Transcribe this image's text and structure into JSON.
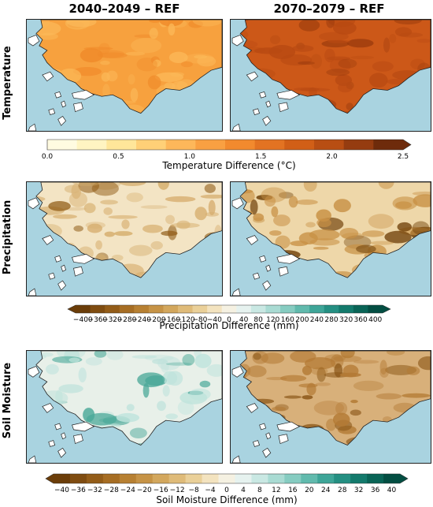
{
  "columns": [
    "2040–2049 – REF",
    "2070–2079 – REF"
  ],
  "rows": [
    {
      "label": "Temperature",
      "colorbar": {
        "title": "Temperature Difference (°C)",
        "ticks": [
          "0.0",
          "0.5",
          "1.0",
          "1.5",
          "2.0",
          "2.5"
        ],
        "colors": [
          "#fffbe1",
          "#fff4c2",
          "#ffe69a",
          "#ffd077",
          "#fdb75a",
          "#f9a042",
          "#f28a2e",
          "#e37322",
          "#d15f17",
          "#b84e13",
          "#953c10",
          "#6e2b0b"
        ]
      }
    },
    {
      "label": "Precipitation",
      "colorbar": {
        "title": "Precipitation Difference (mm)",
        "ticks": [
          "−400",
          "−360",
          "−320",
          "−280",
          "−240",
          "−200",
          "−160",
          "−120",
          "−80",
          "−40",
          "0",
          "40",
          "80",
          "120",
          "160",
          "200",
          "240",
          "280",
          "320",
          "360",
          "400"
        ],
        "colors": [
          "#6b3d09",
          "#7f4c10",
          "#935c18",
          "#a66d23",
          "#b78032",
          "#c69346",
          "#d3a75d",
          "#dfbb79",
          "#ead099",
          "#f3e3bf",
          "#f5f1e2",
          "#e6f2ef",
          "#c9e8e3",
          "#a9dbd3",
          "#86ccc1",
          "#61baad",
          "#3ea598",
          "#248f82",
          "#137a6c",
          "#096456",
          "#034e42"
        ]
      }
    },
    {
      "label": "Soil Moisture",
      "colorbar": {
        "title": "Soil Moisture Difference (mm)",
        "ticks": [
          "−40",
          "−36",
          "−32",
          "−28",
          "−24",
          "−20",
          "−16",
          "−12",
          "−8",
          "−4",
          "0",
          "4",
          "8",
          "12",
          "16",
          "20",
          "24",
          "28",
          "32",
          "36",
          "40"
        ],
        "colors": [
          "#6b3d09",
          "#7f4c10",
          "#935c18",
          "#a66d23",
          "#b78032",
          "#c69346",
          "#d3a75d",
          "#dfbb79",
          "#ead099",
          "#f3e3bf",
          "#f5f1e2",
          "#e6f2ef",
          "#c9e8e3",
          "#a9dbd3",
          "#86ccc1",
          "#61baad",
          "#3ea598",
          "#248f82",
          "#137a6c",
          "#096456",
          "#034e42"
        ]
      }
    }
  ],
  "panels": [
    {
      "land": "#f7a13e",
      "patch": "#fbb858",
      "dark": "#f08a2a",
      "sea": "#a9d3e0"
    },
    {
      "land": "#cc5818",
      "patch": "#b84a12",
      "dark": "#9c3c0d",
      "sea": "#a9d3e0"
    },
    {
      "land": "#f3e4c4",
      "patch": "#d6ae6e",
      "dark": "#8f5a14",
      "sea": "#a9d3e0"
    },
    {
      "land": "#eed7a9",
      "patch": "#c89145",
      "dark": "#6e3f08",
      "sea": "#a9d3e0"
    },
    {
      "land": "#e8f0e9",
      "patch": "#bfe3dc",
      "dark": "#4aa898",
      "sea": "#a9d3e0"
    },
    {
      "land": "#d8b07a",
      "patch": "#b37a34",
      "dark": "#8a5617",
      "sea": "#a9d3e0"
    }
  ]
}
